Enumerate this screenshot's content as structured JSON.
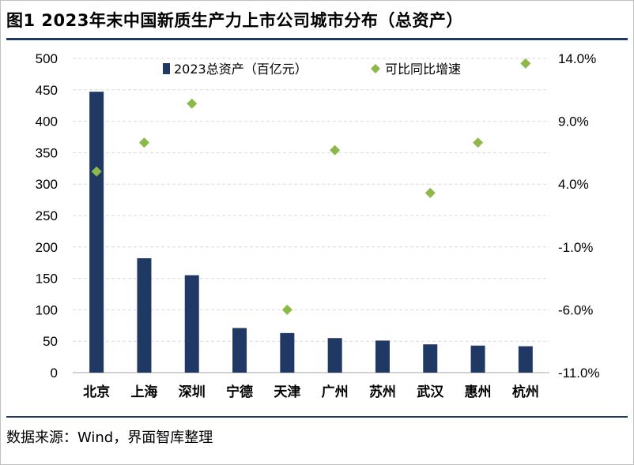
{
  "title": "图1 2023年末中国新质生产力上市公司城市分布（总资产）",
  "source": "数据来源：Wind，界面智库整理",
  "colors": {
    "bar": "#1f3864",
    "marker": "#8db84a",
    "rule": "#1f3864",
    "grid": "#d9d9d9"
  },
  "chart_data": {
    "type": "bar",
    "categories": [
      "北京",
      "上海",
      "深圳",
      "宁德",
      "天津",
      "广州",
      "苏州",
      "武汉",
      "惠州",
      "杭州"
    ],
    "series": [
      {
        "name": "2023总资产（百亿元）",
        "type": "bar",
        "axis": "left",
        "values": [
          447,
          182,
          155,
          71,
          63,
          55,
          51,
          45,
          43,
          42
        ]
      },
      {
        "name": "可比同比增速",
        "type": "scatter",
        "axis": "right",
        "marker": "diamond",
        "values": [
          5.0,
          7.3,
          10.4,
          null,
          -6.0,
          6.7,
          null,
          3.3,
          7.3,
          13.6
        ]
      }
    ],
    "left_axis": {
      "ylim": [
        0,
        500
      ],
      "ticks": [
        "0",
        "50",
        "100",
        "150",
        "200",
        "250",
        "300",
        "350",
        "400",
        "450",
        "500"
      ]
    },
    "right_axis": {
      "ylim": [
        -11,
        14
      ],
      "ticks": [
        "-11.0%",
        "-6.0%",
        "-1.0%",
        "4.0%",
        "9.0%",
        "14.0%"
      ]
    },
    "grid": true,
    "legend": "top-center"
  }
}
